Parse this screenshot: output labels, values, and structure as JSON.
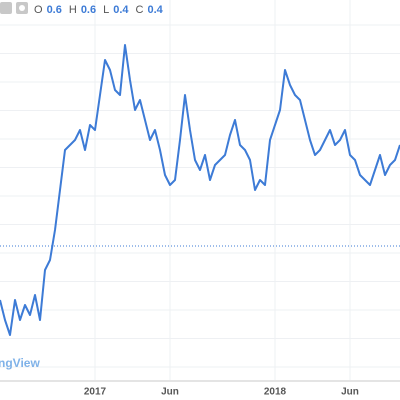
{
  "header": {
    "items": [
      {
        "key": "O",
        "value": "0.6"
      },
      {
        "key": "H",
        "value": "0.6"
      },
      {
        "key": "L",
        "value": "0.4"
      },
      {
        "key": "C",
        "value": "0.4"
      }
    ]
  },
  "watermark": "ngView",
  "chart_data": {
    "type": "line",
    "categories": [
      null,
      null,
      null,
      null,
      null,
      null,
      null,
      null,
      null,
      null,
      null,
      null,
      null,
      null,
      null,
      null,
      null,
      null,
      null,
      "2017",
      null,
      null,
      null,
      null,
      null,
      null,
      null,
      null,
      null,
      null,
      null,
      null,
      null,
      null,
      "Jun",
      null,
      null,
      null,
      null,
      null,
      null,
      null,
      null,
      null,
      null,
      null,
      null,
      null,
      null,
      null,
      null,
      null,
      null,
      null,
      null,
      "2018",
      null,
      null,
      null,
      null,
      null,
      null,
      null,
      null,
      null,
      null,
      null,
      null,
      null,
      null,
      "Jun",
      null,
      null,
      null,
      null,
      null,
      null,
      null,
      null,
      null,
      null
    ],
    "series": [
      {
        "color": "#3d7bd6",
        "values": [
          100,
          80,
          65,
          100,
          80,
          95,
          85,
          105,
          80,
          130,
          140,
          170,
          210,
          250,
          255,
          260,
          270,
          250,
          275,
          270,
          305,
          340,
          330,
          310,
          305,
          355,
          320,
          290,
          300,
          280,
          260,
          270,
          250,
          225,
          215,
          220,
          260,
          305,
          270,
          240,
          230,
          245,
          220,
          235,
          240,
          245,
          265,
          280,
          255,
          250,
          240,
          210,
          220,
          215,
          260,
          275,
          290,
          330,
          315,
          305,
          300,
          280,
          260,
          245,
          250,
          260,
          270,
          255,
          260,
          270,
          245,
          240,
          225,
          220,
          215,
          230,
          245,
          225,
          235,
          240,
          255
        ]
      }
    ],
    "ylim": [
      20,
      380
    ],
    "reference_line": {
      "value": 154,
      "color": "#3d7bd6"
    },
    "grid": true
  }
}
